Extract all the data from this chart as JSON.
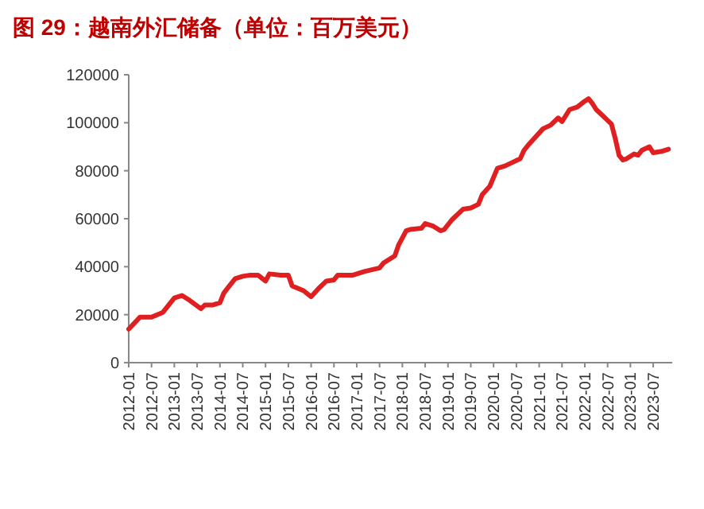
{
  "chart_data": {
    "type": "line",
    "title": "图 29：越南外汇储备（单位：百万美元）",
    "x": [
      "2012-01",
      "2012-04",
      "2012-07",
      "2012-10",
      "2012-11",
      "2013-01",
      "2013-03",
      "2013-05",
      "2013-08",
      "2013-09",
      "2013-11",
      "2014-01",
      "2014-02",
      "2014-03",
      "2014-05",
      "2014-07",
      "2014-09",
      "2014-11",
      "2015-01",
      "2015-02",
      "2015-05",
      "2015-07",
      "2015-08",
      "2015-11",
      "2016-01",
      "2016-03",
      "2016-05",
      "2016-07",
      "2016-08",
      "2016-10",
      "2016-12",
      "2017-02",
      "2017-03",
      "2017-07",
      "2017-08",
      "2017-11",
      "2017-12",
      "2018-02",
      "2018-03",
      "2018-06",
      "2018-07",
      "2018-09",
      "2018-11",
      "2018-12",
      "2019-02",
      "2019-05",
      "2019-07",
      "2019-09",
      "2019-10",
      "2019-12",
      "2020-02",
      "2020-04",
      "2020-06",
      "2020-08",
      "2020-09",
      "2020-10",
      "2021-02",
      "2021-04",
      "2021-06",
      "2021-07",
      "2021-09",
      "2021-11",
      "2022-01",
      "2022-02",
      "2022-03",
      "2022-04",
      "2022-06",
      "2022-08",
      "2022-09",
      "2022-10",
      "2022-11",
      "2022-12",
      "2023-02",
      "2023-03",
      "2023-04",
      "2023-06",
      "2023-07",
      "2023-09",
      "2023-11"
    ],
    "series": [
      {
        "color": "#e02020",
        "values": [
          14000,
          19000,
          19000,
          21000,
          23000,
          27000,
          28000,
          26000,
          22500,
          24000,
          24000,
          25000,
          29000,
          31000,
          35000,
          36000,
          36500,
          36500,
          34000,
          37000,
          36500,
          36500,
          32000,
          30000,
          27500,
          31000,
          34000,
          34500,
          36500,
          36500,
          36500,
          37500,
          38000,
          39500,
          41500,
          44500,
          49000,
          55000,
          55500,
          56000,
          58000,
          57000,
          55000,
          55500,
          59500,
          64000,
          64500,
          66000,
          70000,
          73500,
          81000,
          82000,
          83500,
          85000,
          88500,
          90500,
          97500,
          99000,
          102000,
          100500,
          105500,
          106500,
          109000,
          110000,
          108000,
          105500,
          102500,
          99500,
          93500,
          86500,
          84500,
          85000,
          87000,
          86500,
          88500,
          90000,
          87500,
          88000,
          89000
        ]
      }
    ],
    "xlim": [
      "2012-01",
      "2023-12"
    ],
    "xticks": [
      "2012-01",
      "2012-07",
      "2013-01",
      "2013-07",
      "2014-01",
      "2014-07",
      "2015-01",
      "2015-07",
      "2016-01",
      "2016-07",
      "2017-01",
      "2017-07",
      "2018-01",
      "2018-07",
      "2019-01",
      "2019-07",
      "2020-01",
      "2020-07",
      "2021-01",
      "2021-07",
      "2022-01",
      "2022-07",
      "2023-01",
      "2023-07"
    ],
    "ylim": [
      0,
      120000
    ],
    "yticks": [
      0,
      20000,
      40000,
      60000,
      80000,
      100000,
      120000
    ],
    "line_style": "solid"
  }
}
